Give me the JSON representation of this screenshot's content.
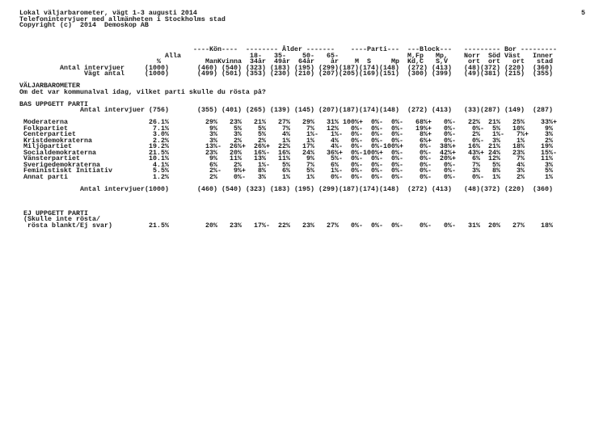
{
  "header": {
    "title_lines": [
      "Lokal väljarbarometer, vägt 1-3 augusti 2014",
      "Telefonintervjuer med allmänheten i Stockholms stad",
      "Copyright (c)  2014  Demoskop AB"
    ],
    "page_number": "5"
  },
  "banner": {
    "group_headers": [
      "----Kön----",
      "-------- Ålder -------",
      "----Parti---",
      "---Block---",
      "--------- Bor ---------"
    ],
    "line1": [
      "Alla",
      "18-",
      "35-",
      "50-",
      "65-",
      "M,Fp",
      "Mp,",
      "Norr",
      "Söd",
      "Väst",
      "Inner"
    ],
    "line2": [
      "%",
      "Man",
      "Kvinna",
      "34år",
      "49år",
      "64år",
      "år",
      "M",
      "S",
      "Mp",
      "Kd,C",
      "S,V",
      "ort",
      "ort",
      "ort",
      "stad"
    ]
  },
  "totals": [
    {
      "label": "Antal intervjuer",
      "values": [
        "(1000)",
        "(460)",
        "(540)",
        "(323)",
        "(183)",
        "(195)",
        "(299)",
        "(187)",
        "(174)",
        "(148)",
        "(272)",
        "(413)",
        "(48)",
        "(372)",
        "(220)",
        "(360)"
      ]
    },
    {
      "label": "Vägt antal",
      "values": [
        "(1000)",
        "(499)",
        "(501)",
        "(353)",
        "(230)",
        "(210)",
        "(207)",
        "(205)",
        "(169)",
        "(151)",
        "(300)",
        "(399)",
        "(49)",
        "(381)",
        "(215)",
        "(355)"
      ]
    }
  ],
  "section": {
    "title": "VÄLJARBAROMETER",
    "question": "Om det var kommunalval idag, vilket parti skulle du rösta på?"
  },
  "base": {
    "title": "BAS UPPGETT PARTI",
    "label": "Antal intervjuer",
    "values": [
      "(756)",
      "(355)",
      "(401)",
      "(265)",
      "(139)",
      "(145)",
      "(207)",
      "(187)",
      "(174)",
      "(148)",
      "(272)",
      "(413)",
      "(33)",
      "(287)",
      "(149)",
      "(287)"
    ]
  },
  "rows": [
    {
      "label": "Moderaterna",
      "values": [
        "26.1%",
        "29%",
        "23%",
        "21%",
        "27%",
        "29%",
        "31%",
        "100%+",
        "0%-",
        "0%-",
        "68%+",
        "0%-",
        "22%",
        "21%",
        "25%",
        "33%+"
      ]
    },
    {
      "label": "Folkpartiet",
      "values": [
        "7.1%",
        "9%",
        "5%",
        "5%",
        "7%",
        "7%",
        "12%",
        "0%-",
        "0%-",
        "0%-",
        "19%+",
        "0%-",
        "0%-",
        "5%",
        "10%",
        "9%"
      ]
    },
    {
      "label": "Centerpartiet",
      "values": [
        "3.0%",
        "3%",
        "3%",
        "5%",
        "4%",
        "1%-",
        "1%-",
        "0%-",
        "0%-",
        "0%-",
        "8%+",
        "0%-",
        "2%",
        "1%-",
        "7%+",
        "3%"
      ]
    },
    {
      "label": "Kristdemokraterna",
      "values": [
        "2.2%",
        "3%",
        "2%",
        "2%",
        "1%",
        "1%",
        "4%",
        "0%-",
        "0%-",
        "0%-",
        "6%+",
        "0%-",
        "0%-",
        "3%",
        "1%",
        "2%"
      ]
    },
    {
      "label": "Miljöpartiet",
      "values": [
        "19.2%",
        "13%-",
        "26%+",
        "26%+",
        "22%",
        "17%",
        "4%-",
        "0%-",
        "0%-",
        "100%+",
        "0%-",
        "38%+",
        "16%",
        "21%",
        "18%",
        "19%"
      ]
    },
    {
      "label": "Socialdemokraterna",
      "values": [
        "21.5%",
        "23%",
        "20%",
        "16%-",
        "16%",
        "24%",
        "36%+",
        "0%-",
        "100%+",
        "0%-",
        "0%-",
        "42%+",
        "43%+",
        "24%",
        "23%",
        "15%-"
      ]
    },
    {
      "label": "Vänsterpartiet",
      "values": [
        "10.1%",
        "9%",
        "11%",
        "13%",
        "11%",
        "9%",
        "5%-",
        "0%-",
        "0%-",
        "0%-",
        "0%-",
        "20%+",
        "6%",
        "12%",
        "7%",
        "11%"
      ]
    },
    {
      "label": "Sverigedemokraterna",
      "values": [
        "4.1%",
        "6%",
        "2%",
        "1%-",
        "5%",
        "7%",
        "6%",
        "0%-",
        "0%-",
        "0%-",
        "0%-",
        "0%-",
        "7%",
        "5%",
        "4%",
        "3%"
      ]
    },
    {
      "label": "Feministiskt Initiativ",
      "values": [
        "5.5%",
        "2%-",
        "9%+",
        "8%",
        "6%",
        "5%",
        "1%-",
        "0%-",
        "0%-",
        "0%-",
        "0%-",
        "0%-",
        "3%",
        "8%",
        "3%",
        "5%"
      ]
    },
    {
      "label": "Annat parti",
      "values": [
        "1.2%",
        "2%",
        "0%-",
        "3%",
        "1%",
        "1%",
        "0%-",
        "0%-",
        "0%-",
        "0%-",
        "0%-",
        "0%-",
        "0%-",
        "1%",
        "2%",
        "1%"
      ]
    }
  ],
  "base_total": {
    "label": "Antal intervjuer",
    "values": [
      "(1000)",
      "(460)",
      "(540)",
      "(323)",
      "(183)",
      "(195)",
      "(299)",
      "(187)",
      "(174)",
      "(148)",
      "(272)",
      "(413)",
      "(48)",
      "(372)",
      "(220)",
      "(360)"
    ]
  },
  "no_party": {
    "lines": [
      "EJ UPPGETT PARTI",
      "(Skulle inte rösta/",
      "rösta blankt/Ej svar)"
    ],
    "values": [
      "21.5%",
      "20%",
      "23%",
      "17%-",
      "22%",
      "23%",
      "27%",
      "0%-",
      "0%-",
      "0%-",
      "0%-",
      "0%-",
      "31%",
      "20%",
      "27%",
      "18%"
    ]
  }
}
